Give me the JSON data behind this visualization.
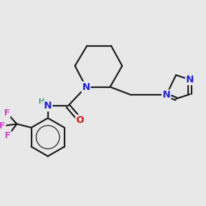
{
  "bg_color": "#e8e8e8",
  "bond_color": "#1a1a1a",
  "N_color": "#2222cc",
  "O_color": "#cc2020",
  "F_color": "#cc44cc",
  "H_color": "#44aa88",
  "line_width": 1.6,
  "font_size_atom": 10,
  "fig_size": [
    3.0,
    3.0
  ],
  "dpi": 100,
  "xlim": [
    0,
    10
  ],
  "ylim": [
    0,
    10
  ]
}
